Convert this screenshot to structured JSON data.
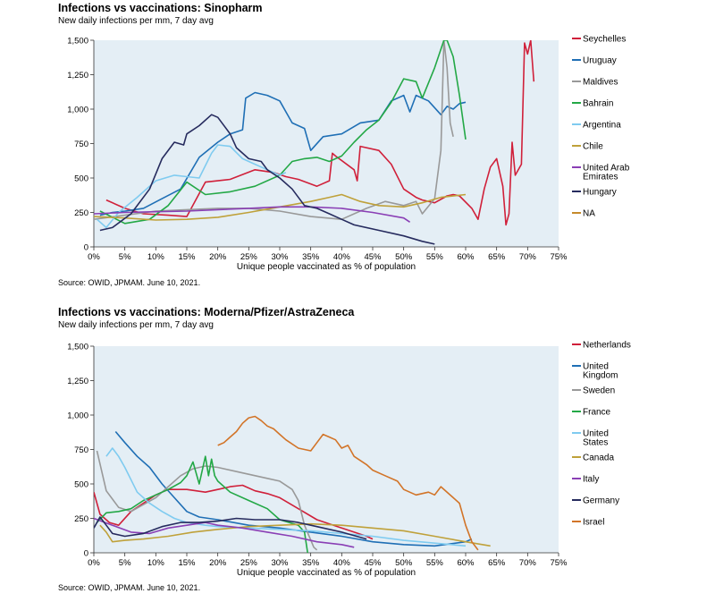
{
  "chart_data": [
    {
      "type": "line",
      "title": "Infections vs vaccinations: Sinopharm",
      "subtitle": "New daily infections per mm, 7 day avg",
      "source": "Source: OWID, JPMAM. June 10, 2021.",
      "xlabel": "Unique people vaccinated as % of population",
      "ylabel": "",
      "xlim": [
        0,
        75
      ],
      "ylim": [
        0,
        1500
      ],
      "x_ticks": [
        "0%",
        "5%",
        "10%",
        "15%",
        "20%",
        "25%",
        "30%",
        "35%",
        "40%",
        "45%",
        "50%",
        "55%",
        "60%",
        "65%",
        "70%",
        "75%"
      ],
      "y_ticks": [
        "0",
        "250",
        "500",
        "750",
        "1,000",
        "1,250",
        "1,500"
      ],
      "legend_position": "right",
      "series": [
        {
          "name": "Seychelles",
          "color": "#d0203a",
          "x": [
            2,
            5,
            8,
            12,
            15,
            18,
            22,
            26,
            29,
            31,
            33,
            36,
            38,
            38.5,
            39,
            42,
            42.5,
            43,
            46,
            48,
            50,
            52,
            53,
            55,
            57,
            58,
            59,
            61,
            62,
            63,
            64,
            65,
            66,
            66.5,
            67,
            67.5,
            68,
            69,
            69.5,
            70,
            70.5,
            71
          ],
          "y": [
            340,
            280,
            240,
            230,
            220,
            470,
            490,
            560,
            540,
            510,
            490,
            440,
            480,
            680,
            660,
            560,
            480,
            730,
            700,
            600,
            420,
            360,
            340,
            320,
            370,
            380,
            370,
            280,
            200,
            420,
            580,
            640,
            440,
            160,
            240,
            760,
            520,
            600,
            1480,
            1400,
            1500,
            1200
          ]
        },
        {
          "name": "Uruguay",
          "color": "#1f6fb5",
          "x": [
            1,
            3,
            5,
            8,
            11,
            14,
            17,
            20,
            22,
            24,
            24.5,
            26,
            28,
            30,
            32,
            34,
            35,
            37,
            40,
            43,
            46,
            48,
            50,
            51,
            52,
            54,
            56,
            57,
            58,
            59,
            60
          ],
          "y": [
            230,
            250,
            260,
            280,
            350,
            420,
            650,
            760,
            820,
            850,
            1080,
            1120,
            1100,
            1060,
            900,
            860,
            700,
            800,
            820,
            900,
            920,
            1060,
            1100,
            980,
            1100,
            1060,
            960,
            1020,
            1000,
            1040,
            1050
          ]
        },
        {
          "name": "Maldives",
          "color": "#999999",
          "x": [
            0,
            5,
            10,
            15,
            20,
            25,
            30,
            35,
            40,
            44,
            47,
            50,
            52,
            53,
            55,
            56,
            56.5,
            57,
            57.5,
            58
          ],
          "y": [
            200,
            230,
            260,
            270,
            280,
            280,
            260,
            220,
            200,
            280,
            330,
            300,
            330,
            240,
            350,
            700,
            1500,
            1300,
            900,
            800
          ]
        },
        {
          "name": "Bahrain",
          "color": "#23a846",
          "x": [
            1,
            5,
            9,
            12,
            15,
            18,
            22,
            26,
            30,
            32,
            34,
            36,
            38,
            40,
            42,
            44,
            46,
            48,
            50,
            52,
            53,
            55,
            56.5,
            57,
            58,
            59,
            60
          ],
          "y": [
            260,
            170,
            200,
            300,
            470,
            380,
            400,
            440,
            520,
            620,
            640,
            650,
            620,
            660,
            760,
            850,
            920,
            1050,
            1220,
            1200,
            1080,
            1300,
            1500,
            1500,
            1380,
            1100,
            780
          ]
        },
        {
          "name": "Argentina",
          "color": "#7fcbf0",
          "x": [
            0.5,
            2,
            4,
            7,
            10,
            13,
            15,
            17,
            19,
            20,
            22,
            24,
            26,
            28,
            30,
            31
          ],
          "y": [
            200,
            140,
            250,
            360,
            480,
            520,
            510,
            500,
            680,
            740,
            730,
            640,
            600,
            560,
            520,
            540
          ]
        },
        {
          "name": "Chile",
          "color": "#bfa13a",
          "x": [
            0,
            5,
            10,
            15,
            20,
            25,
            30,
            35,
            38,
            40,
            43,
            46,
            50,
            53,
            56,
            60
          ],
          "y": [
            220,
            210,
            195,
            200,
            215,
            250,
            290,
            330,
            360,
            380,
            330,
            300,
            290,
            320,
            360,
            380
          ]
        },
        {
          "name": "United Arab Emirates",
          "color": "#8a3fb5",
          "x": [
            0,
            5,
            10,
            15,
            20,
            25,
            30,
            35,
            40,
            45,
            50,
            51
          ],
          "y": [
            240,
            250,
            255,
            260,
            270,
            280,
            290,
            290,
            280,
            250,
            210,
            180
          ]
        },
        {
          "name": "Hungary",
          "color": "#262b5e",
          "x": [
            1,
            3,
            6,
            9,
            11,
            13,
            14.5,
            15,
            17,
            19,
            20,
            22,
            23,
            25,
            27,
            28,
            30,
            32,
            34,
            36,
            38,
            40,
            42,
            46,
            50,
            53,
            55
          ],
          "y": [
            120,
            140,
            240,
            420,
            640,
            760,
            740,
            820,
            880,
            960,
            940,
            820,
            720,
            640,
            620,
            560,
            500,
            420,
            300,
            280,
            240,
            200,
            160,
            120,
            80,
            40,
            20
          ]
        },
        {
          "name": "NA",
          "color": "#c58a2a",
          "x": [],
          "y": []
        }
      ]
    },
    {
      "type": "line",
      "title": "Infections vs vaccinations: Moderna/Pfizer/AstraZeneca",
      "subtitle": "New daily infections per mm, 7 day avg",
      "source": "Source: OWID, JPMAM. June 10, 2021.",
      "xlabel": "Unique people vaccinated as % of population",
      "ylabel": "",
      "xlim": [
        0,
        75
      ],
      "ylim": [
        0,
        1500
      ],
      "x_ticks": [
        "0%",
        "5%",
        "10%",
        "15%",
        "20%",
        "25%",
        "30%",
        "35%",
        "40%",
        "45%",
        "50%",
        "55%",
        "60%",
        "65%",
        "70%",
        "75%"
      ],
      "y_ticks": [
        "0",
        "250",
        "500",
        "750",
        "1,000",
        "1,250",
        "1,500"
      ],
      "legend_position": "right",
      "series": [
        {
          "name": "Netherlands",
          "color": "#d0203a",
          "x": [
            0,
            1,
            2.5,
            4,
            6,
            8,
            10,
            12,
            15,
            18,
            20,
            22,
            24,
            26,
            28,
            30,
            33,
            36,
            40,
            44,
            45
          ],
          "y": [
            440,
            280,
            220,
            200,
            300,
            360,
            420,
            460,
            460,
            440,
            460,
            480,
            490,
            450,
            430,
            400,
            320,
            240,
            180,
            120,
            100
          ]
        },
        {
          "name": "United Kingdom",
          "color": "#1f6fb5",
          "x": [
            3.5,
            5,
            7,
            9,
            11,
            13,
            15,
            17,
            20,
            25,
            30,
            35,
            40,
            45,
            50,
            55,
            60,
            61
          ],
          "y": [
            880,
            800,
            700,
            620,
            500,
            400,
            300,
            260,
            240,
            200,
            180,
            150,
            120,
            80,
            60,
            50,
            80,
            100
          ]
        },
        {
          "name": "Sweden",
          "color": "#999999",
          "x": [
            0.5,
            2,
            4,
            6,
            8,
            10,
            12,
            14,
            16,
            18,
            20,
            24,
            28,
            30,
            32,
            33,
            34,
            35.5,
            36
          ],
          "y": [
            740,
            450,
            330,
            300,
            350,
            400,
            480,
            560,
            610,
            630,
            620,
            580,
            540,
            520,
            460,
            380,
            200,
            40,
            20
          ]
        },
        {
          "name": "France",
          "color": "#23a846",
          "x": [
            0.5,
            2,
            4,
            6,
            8,
            10,
            12,
            14,
            15,
            16,
            17,
            18,
            18.5,
            19,
            19.5,
            20,
            22,
            25,
            28,
            30,
            33,
            34,
            34.5
          ],
          "y": [
            220,
            290,
            300,
            320,
            380,
            420,
            460,
            510,
            560,
            660,
            500,
            700,
            560,
            680,
            560,
            520,
            440,
            380,
            320,
            240,
            200,
            150,
            0
          ]
        },
        {
          "name": "United States",
          "color": "#7fcbf0",
          "x": [
            2,
            3,
            4,
            5,
            7,
            9,
            11,
            13,
            15,
            18,
            20,
            25,
            30,
            35,
            40,
            45,
            50,
            55,
            60
          ],
          "y": [
            700,
            760,
            700,
            620,
            440,
            360,
            300,
            250,
            220,
            200,
            190,
            180,
            170,
            160,
            140,
            120,
            90,
            70,
            50
          ]
        },
        {
          "name": "Canada",
          "color": "#bfa13a",
          "x": [
            1,
            2,
            3,
            5,
            8,
            12,
            16,
            20,
            25,
            30,
            35,
            40,
            45,
            50,
            55,
            60,
            64
          ],
          "y": [
            200,
            150,
            80,
            90,
            100,
            120,
            150,
            170,
            190,
            200,
            210,
            200,
            180,
            160,
            120,
            80,
            50
          ]
        },
        {
          "name": "Italy",
          "color": "#8a3fb5",
          "x": [
            0,
            3,
            6,
            9,
            12,
            15,
            18,
            20,
            24,
            28,
            32,
            36,
            40,
            42
          ],
          "y": [
            250,
            200,
            150,
            140,
            180,
            200,
            220,
            200,
            180,
            150,
            120,
            80,
            60,
            40
          ]
        },
        {
          "name": "Germany",
          "color": "#262b5e",
          "x": [
            0,
            1,
            2,
            3,
            5,
            8,
            11,
            14,
            17,
            20,
            23,
            26,
            30,
            33,
            36,
            40,
            44
          ],
          "y": [
            180,
            260,
            200,
            140,
            120,
            140,
            190,
            220,
            220,
            230,
            250,
            240,
            240,
            220,
            190,
            150,
            100
          ]
        },
        {
          "name": "Israel",
          "color": "#d27428",
          "x": [
            20,
            21,
            22,
            23,
            24,
            25,
            26,
            27,
            28,
            29,
            30,
            31,
            33,
            35,
            36,
            37,
            38,
            39,
            40,
            41,
            42,
            44,
            45,
            47,
            49,
            50,
            52,
            54,
            55,
            56,
            58,
            59,
            60,
            61,
            62
          ],
          "y": [
            780,
            800,
            840,
            880,
            940,
            980,
            990,
            960,
            920,
            900,
            860,
            820,
            760,
            740,
            800,
            860,
            840,
            820,
            760,
            780,
            700,
            640,
            600,
            560,
            520,
            460,
            420,
            440,
            420,
            480,
            400,
            360,
            200,
            80,
            20
          ]
        }
      ]
    }
  ]
}
